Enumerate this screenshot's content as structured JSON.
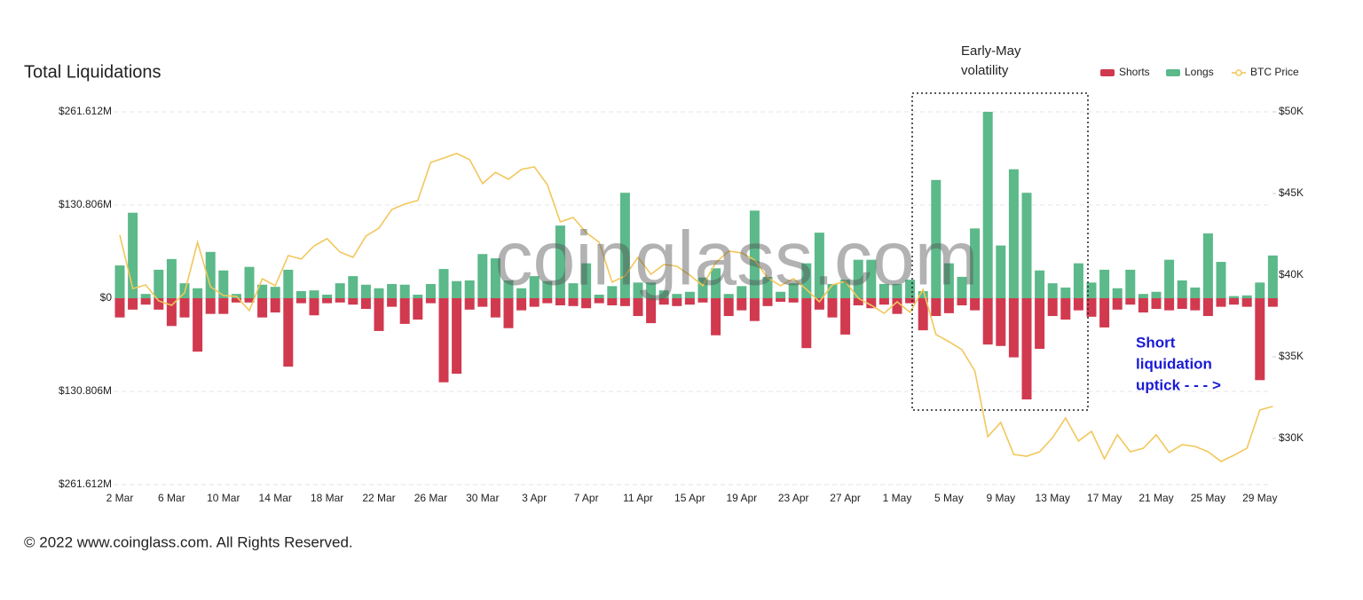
{
  "chart_data": {
    "type": "bar",
    "title": "Total Liquidations",
    "watermark": "coinglass.com",
    "footer": "© 2022 www.coinglass.com. All Rights Reserved.",
    "annotations": [
      {
        "lines": [
          "Early-May",
          "volatility"
        ]
      },
      {
        "lines": [
          "Short",
          "liquidation",
          "uptick - - - >"
        ]
      }
    ],
    "legend": "top-right",
    "grid": true,
    "categories": [
      "2 Mar",
      null,
      null,
      null,
      "6 Mar",
      null,
      null,
      null,
      "10 Mar",
      null,
      null,
      null,
      "14 Mar",
      null,
      null,
      null,
      "18 Mar",
      null,
      null,
      null,
      "22 Mar",
      null,
      null,
      null,
      "26 Mar",
      null,
      null,
      null,
      "30 Mar",
      null,
      null,
      null,
      "3 Apr",
      null,
      null,
      null,
      "7 Apr",
      null,
      null,
      null,
      "11 Apr",
      null,
      null,
      null,
      "15 Apr",
      null,
      null,
      null,
      "19 Apr",
      null,
      null,
      null,
      "23 Apr",
      null,
      null,
      null,
      "27 Apr",
      null,
      null,
      null,
      "1 May",
      null,
      null,
      null,
      "5 May",
      null,
      null,
      null,
      "9 May",
      null,
      null,
      null,
      "13 May",
      null,
      null,
      null,
      "17 May",
      null,
      null,
      null,
      "21 May",
      null,
      null,
      null,
      "25 May",
      null,
      null,
      null,
      "29 May",
      null
    ],
    "ylim": [
      -261.612,
      261.612
    ],
    "yticks": [
      {
        "value": 261.612,
        "label": "$261.612M"
      },
      {
        "value": 130.806,
        "label": "$130.806M"
      },
      {
        "value": 0,
        "label": "$0"
      },
      {
        "value": -130.806,
        "label": "$130.806M"
      },
      {
        "value": -261.612,
        "label": "$261.612M"
      }
    ],
    "y2lim": [
      27170,
      50000
    ],
    "y2ticks": [
      {
        "value": 50000,
        "label": "$50K"
      },
      {
        "value": 45000,
        "label": "$45K"
      },
      {
        "value": 40000,
        "label": "$40K"
      },
      {
        "value": 35000,
        "label": "$35K"
      },
      {
        "value": 30000,
        "label": "$30K"
      }
    ],
    "series": [
      {
        "name": "Shorts",
        "type": "bar",
        "color": "#d1394f",
        "values": [
          -27,
          -16,
          -9,
          -16,
          -39,
          -27,
          -75,
          -22,
          -22,
          -6,
          -6,
          -27,
          -20,
          -96,
          -7,
          -24,
          -7,
          -6,
          -9,
          -15,
          -46,
          -12,
          -36,
          -30,
          -7,
          -118,
          -106,
          -16,
          -12,
          -27,
          -42,
          -17,
          -12,
          -7,
          -10,
          -11,
          -14,
          -7,
          -10,
          -11,
          -25,
          -35,
          -9,
          -11,
          -9,
          -6,
          -52,
          -25,
          -17,
          -32,
          -11,
          -5,
          -6,
          -70,
          -16,
          -27,
          -51,
          -10,
          -14,
          -9,
          -22,
          -7,
          -45,
          -25,
          -21,
          -10,
          -17,
          -65,
          -67,
          -83,
          -142,
          -71,
          -25,
          -30,
          -17,
          -26,
          -41,
          -16,
          -9,
          -20,
          -15,
          -17,
          -15,
          -17,
          -25,
          -12,
          -9,
          -12,
          -115,
          -12
        ]
      },
      {
        "name": "Longs",
        "type": "bar",
        "color": "#5cb98a",
        "values": [
          46,
          120,
          6,
          40,
          55,
          21,
          14,
          65,
          39,
          6,
          44,
          19,
          16,
          40,
          10,
          11,
          5,
          21,
          31,
          19,
          14,
          20,
          19,
          5,
          20,
          41,
          24,
          25,
          62,
          56,
          25,
          14,
          31,
          24,
          102,
          21,
          49,
          5,
          17,
          148,
          22,
          22,
          11,
          6,
          9,
          29,
          42,
          6,
          17,
          123,
          30,
          9,
          21,
          49,
          92,
          20,
          26,
          54,
          54,
          20,
          20,
          26,
          10,
          166,
          49,
          30,
          98,
          261.6,
          74,
          181,
          148,
          39,
          21,
          15,
          49,
          22,
          40,
          14,
          40,
          6,
          9,
          54,
          25,
          15,
          91,
          51,
          3,
          4,
          22,
          60
        ]
      },
      {
        "name": "BTC Price",
        "type": "line",
        "axis": "y2",
        "color": "#f2c75c",
        "values": [
          42450,
          39180,
          39400,
          38420,
          38150,
          38910,
          42010,
          39290,
          38750,
          38700,
          37830,
          39780,
          39350,
          41200,
          40980,
          41790,
          42230,
          41410,
          41090,
          42390,
          42880,
          44020,
          44350,
          44570,
          46900,
          47170,
          47450,
          47070,
          45600,
          46300,
          45870,
          46470,
          46630,
          45540,
          43260,
          43530,
          42610,
          42010,
          39570,
          39950,
          41090,
          40050,
          40650,
          40540,
          40000,
          39350,
          40760,
          41470,
          41360,
          40920,
          39840,
          39350,
          39780,
          39130,
          38370,
          39400,
          39620,
          38590,
          38150,
          37660,
          38370,
          37720,
          39130,
          36360,
          35920,
          35430,
          34130,
          30110,
          30980,
          29020,
          28910,
          29180,
          30050,
          31250,
          29840,
          30430,
          28750,
          30220,
          29180,
          29400,
          30220,
          29130,
          29620,
          29510,
          29180,
          28590,
          28970,
          29400,
          31740,
          31960
        ]
      }
    ]
  }
}
